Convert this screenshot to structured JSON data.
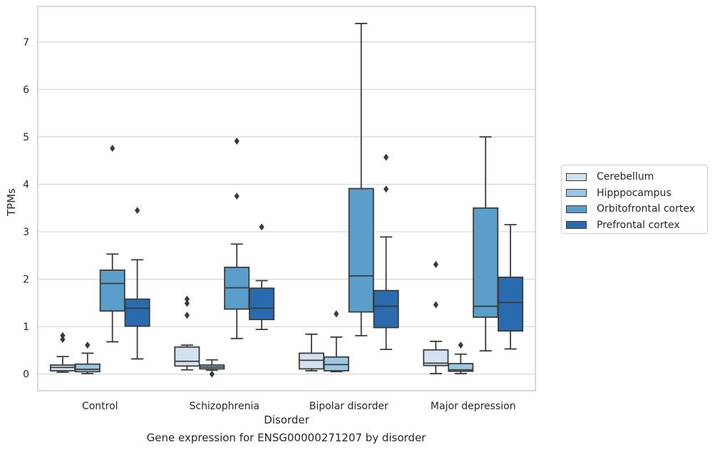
{
  "caption": "Gene expression for ENSG00000271207 by disorder",
  "chart_data": {
    "type": "box",
    "xlabel": "Disorder",
    "ylabel": "TPMs",
    "ylim": [
      -0.35,
      7.75
    ],
    "yticks": [
      0,
      1,
      2,
      3,
      4,
      5,
      6,
      7
    ],
    "grid": true,
    "legend_position": "right",
    "categories": [
      "Control",
      "Schizophrenia",
      "Bipolar disorder",
      "Major depression"
    ],
    "series": [
      {
        "name": "Cerebellum",
        "color": "#d2e2f1",
        "boxes": [
          {
            "min": 0.04,
            "q1": 0.07,
            "median": 0.14,
            "q3": 0.19,
            "max": 0.37,
            "outliers": [
              0.73,
              0.81
            ]
          },
          {
            "min": 0.09,
            "q1": 0.17,
            "median": 0.27,
            "q3": 0.57,
            "max": 0.61,
            "outliers": [
              1.24,
              1.49,
              1.58
            ]
          },
          {
            "min": 0.07,
            "q1": 0.11,
            "median": 0.29,
            "q3": 0.44,
            "max": 0.84,
            "outliers": []
          },
          {
            "min": 0.01,
            "q1": 0.18,
            "median": 0.23,
            "q3": 0.51,
            "max": 0.69,
            "outliers": [
              1.46,
              2.31
            ]
          }
        ]
      },
      {
        "name": "Hipppocampus",
        "color": "#9ac8e0",
        "boxes": [
          {
            "min": 0.01,
            "q1": 0.05,
            "median": 0.1,
            "q3": 0.21,
            "max": 0.44,
            "outliers": [
              0.61
            ]
          },
          {
            "min": 0.08,
            "q1": 0.11,
            "median": 0.15,
            "q3": 0.19,
            "max": 0.3,
            "outliers": [
              0.0
            ]
          },
          {
            "min": 0.05,
            "q1": 0.07,
            "median": 0.2,
            "q3": 0.36,
            "max": 0.78,
            "outliers": [
              1.27
            ]
          },
          {
            "min": 0.01,
            "q1": 0.06,
            "median": 0.09,
            "q3": 0.22,
            "max": 0.42,
            "outliers": [
              0.61
            ]
          }
        ]
      },
      {
        "name": "Orbitofrontal cortex",
        "color": "#5a9ec9",
        "boxes": [
          {
            "min": 0.68,
            "q1": 1.33,
            "median": 1.91,
            "q3": 2.19,
            "max": 2.53,
            "outliers": [
              4.76
            ]
          },
          {
            "min": 0.75,
            "q1": 1.37,
            "median": 1.82,
            "q3": 2.25,
            "max": 2.74,
            "outliers": [
              3.75,
              4.91
            ]
          },
          {
            "min": 0.81,
            "q1": 1.31,
            "median": 2.07,
            "q3": 3.91,
            "max": 7.39,
            "outliers": []
          },
          {
            "min": 0.49,
            "q1": 1.2,
            "median": 1.43,
            "q3": 3.5,
            "max": 5.0,
            "outliers": []
          }
        ]
      },
      {
        "name": "Prefrontal cortex",
        "color": "#2a6aaf",
        "boxes": [
          {
            "min": 0.32,
            "q1": 1.01,
            "median": 1.39,
            "q3": 1.58,
            "max": 2.41,
            "outliers": [
              3.45
            ]
          },
          {
            "min": 0.94,
            "q1": 1.15,
            "median": 1.39,
            "q3": 1.81,
            "max": 1.97,
            "outliers": [
              3.1
            ]
          },
          {
            "min": 0.52,
            "q1": 0.98,
            "median": 1.43,
            "q3": 1.76,
            "max": 2.89,
            "outliers": [
              3.9,
              4.57
            ]
          },
          {
            "min": 0.53,
            "q1": 0.91,
            "median": 1.51,
            "q3": 2.04,
            "max": 3.15,
            "outliers": []
          }
        ]
      }
    ]
  }
}
